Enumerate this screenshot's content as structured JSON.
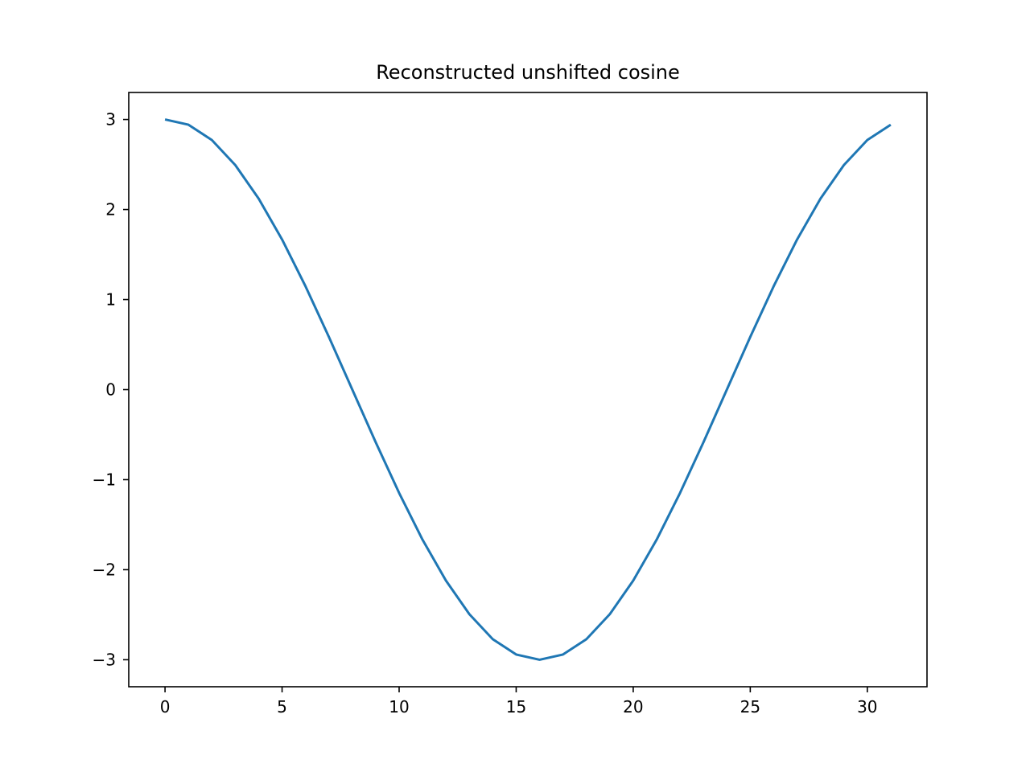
{
  "chart_data": {
    "type": "line",
    "title": "Reconstructed unshifted cosine",
    "xlabel": "",
    "ylabel": "",
    "xlim": [
      -1.55,
      32.55
    ],
    "ylim": [
      -3.3,
      3.3
    ],
    "grid": false,
    "legend": "none",
    "x_ticks": [
      0,
      5,
      10,
      15,
      20,
      25,
      30
    ],
    "x_tick_labels": [
      "0",
      "5",
      "10",
      "15",
      "20",
      "25",
      "30"
    ],
    "y_ticks": [
      3,
      2,
      1,
      0,
      -1,
      -2,
      -3
    ],
    "y_tick_labels": [
      "3",
      "2",
      "1",
      "0",
      "−1",
      "−2",
      "−3"
    ],
    "series": [
      {
        "color": "#1f77b4",
        "x": [
          0,
          1,
          2,
          3,
          4,
          5,
          6,
          7,
          8,
          9,
          10,
          11,
          12,
          13,
          14,
          15,
          16,
          17,
          18,
          19,
          20,
          21,
          22,
          23,
          24,
          25,
          26,
          27,
          28,
          29,
          30,
          31
        ],
        "values": [
          3.0,
          2.942,
          2.772,
          2.494,
          2.121,
          1.667,
          1.148,
          0.585,
          0.0,
          -0.585,
          -1.148,
          -1.667,
          -2.121,
          -2.494,
          -2.772,
          -2.942,
          -3.0,
          -2.942,
          -2.772,
          -2.494,
          -2.121,
          -1.667,
          -1.148,
          -0.585,
          0.0,
          0.585,
          1.148,
          1.667,
          2.121,
          2.494,
          2.772,
          2.942
        ]
      }
    ]
  }
}
